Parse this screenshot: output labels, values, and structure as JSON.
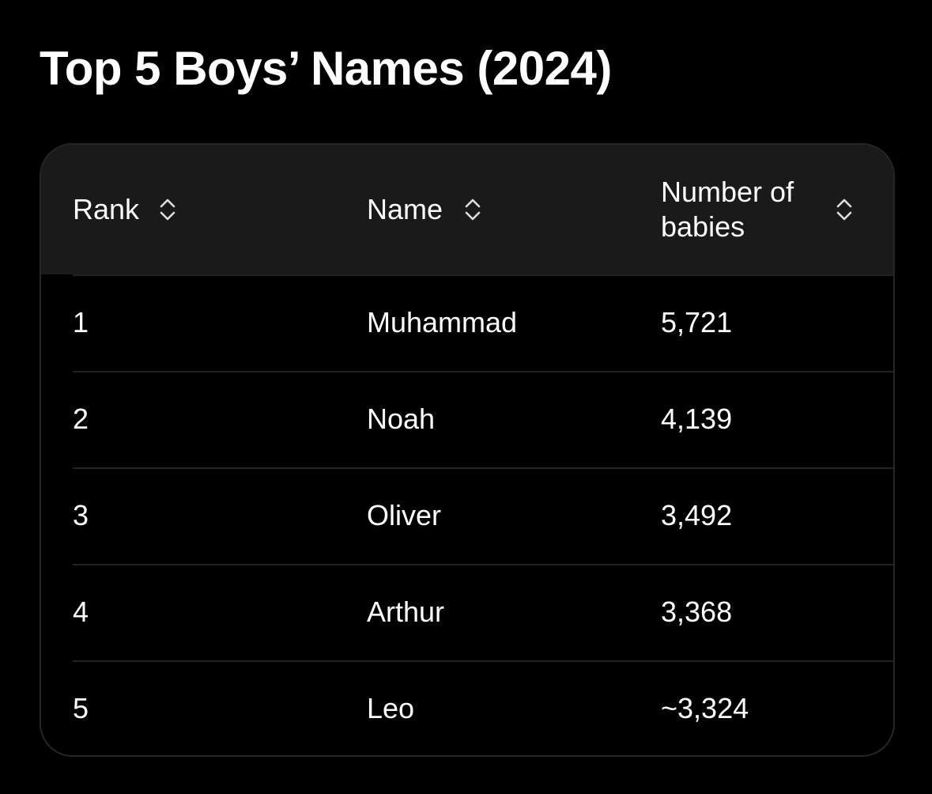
{
  "header": {
    "title": "Top 5 Boys’ Names (2024)"
  },
  "table": {
    "columns": [
      "Rank",
      "Name",
      "Number of babies"
    ],
    "rows": [
      [
        "1",
        "Muhammad",
        "5,721"
      ],
      [
        "2",
        "Noah",
        "4,139"
      ],
      [
        "3",
        "Oliver",
        "3,492"
      ],
      [
        "4",
        "Arthur",
        "3,368"
      ],
      [
        "5",
        "Leo",
        "~3,324"
      ]
    ]
  }
}
